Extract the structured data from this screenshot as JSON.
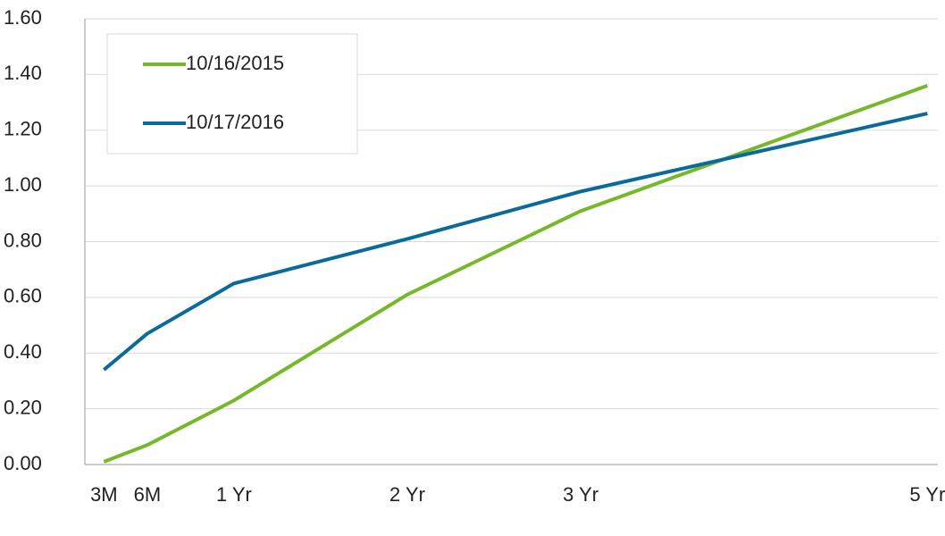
{
  "chart_data": {
    "type": "line",
    "x": [
      0.25,
      0.5,
      1,
      2,
      3,
      5
    ],
    "series": [
      {
        "name": "10/16/2015",
        "color": "#77b82a",
        "values": [
          0.01,
          0.07,
          0.23,
          0.61,
          0.91,
          1.36
        ]
      },
      {
        "name": "10/17/2016",
        "color": "#0a6b9a",
        "values": [
          0.34,
          0.47,
          0.65,
          0.81,
          0.98,
          1.26
        ]
      }
    ],
    "xlim": [
      0.14,
      5.06
    ],
    "xticks": [
      {
        "value": 0.25,
        "label": "3M"
      },
      {
        "value": 0.5,
        "label": "6M"
      },
      {
        "value": 1,
        "label": "1 Yr"
      },
      {
        "value": 2,
        "label": "2 Yr"
      },
      {
        "value": 3,
        "label": "3 Yr"
      },
      {
        "value": 5,
        "label": "5 Yr"
      }
    ],
    "ylim": [
      0,
      1.6
    ],
    "yticks": [
      {
        "value": 0,
        "label": "0.00"
      },
      {
        "value": 0.2,
        "label": "0.20"
      },
      {
        "value": 0.4,
        "label": "0.40"
      },
      {
        "value": 0.6,
        "label": "0.60"
      },
      {
        "value": 0.8,
        "label": "0.80"
      },
      {
        "value": 1,
        "label": "1.00"
      },
      {
        "value": 1.2,
        "label": "1.20"
      },
      {
        "value": 1.4,
        "label": "1.40"
      },
      {
        "value": 1.6,
        "label": "1.60"
      }
    ],
    "grid": true,
    "legend": "upper left"
  }
}
